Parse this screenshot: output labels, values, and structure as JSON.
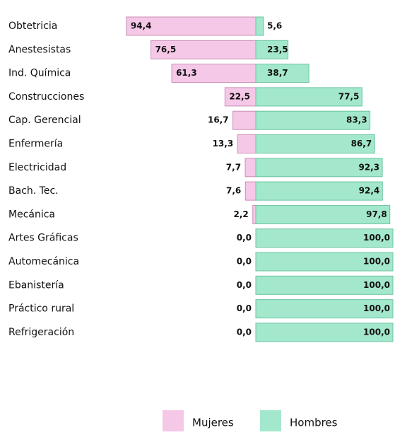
{
  "chart_data": {
    "type": "diverging-bar",
    "categories": [
      "Obtetricia",
      "Anestesistas",
      "Ind. Química",
      "Construcciones",
      "Cap. Gerencial",
      "Enfermería",
      "Electricidad",
      "Bach. Tec.",
      "Mecánica",
      "Artes Gráficas",
      "Automecánica",
      "Ebanistería",
      "Práctico rural",
      "Refrigeración"
    ],
    "series": [
      {
        "name": "Mujeres",
        "color": "#f6c8e8",
        "values": [
          94.4,
          76.5,
          61.3,
          22.5,
          16.7,
          13.3,
          7.7,
          7.6,
          2.2,
          0,
          0,
          0,
          0,
          0
        ],
        "value_labels": [
          "94,4",
          "76,5",
          "61,3",
          "22,5",
          "16,7",
          "13,3",
          "7,7",
          "7,6",
          "2,2",
          "0,0",
          "0,0",
          "0,0",
          "0,0",
          "0,0"
        ]
      },
      {
        "name": "Hombres",
        "color": "#a3e8cc",
        "values": [
          5.6,
          23.5,
          38.7,
          77.5,
          83.3,
          86.7,
          92.3,
          92.4,
          97.8,
          100,
          100,
          100,
          100,
          100
        ],
        "value_labels": [
          "5,6",
          "23,5",
          "38,7",
          "77,5",
          "83,3",
          "86,7",
          "92,3",
          "92,4",
          "97,8",
          "100,0",
          "100,0",
          "100,0",
          "100,0",
          "100,0"
        ]
      }
    ],
    "legend": "bottom"
  }
}
